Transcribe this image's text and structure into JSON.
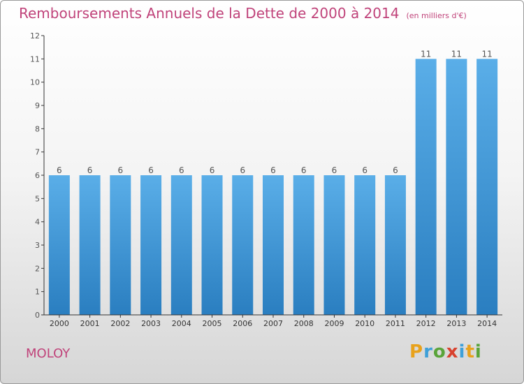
{
  "header": {
    "title": "Remboursements Annuels de la Dette de 2000 à 2014",
    "unit": "(en milliers d'€)"
  },
  "footer": {
    "commune": "MOLOY",
    "brand_letters": [
      "P",
      "r",
      "o",
      "x",
      "i",
      "t",
      "i"
    ]
  },
  "chart_data": {
    "type": "bar",
    "title": "Remboursements Annuels de la Dette de 2000 à 2014",
    "subtitle": "(en milliers d'€)",
    "categories": [
      "2000",
      "2001",
      "2002",
      "2003",
      "2004",
      "2005",
      "2006",
      "2007",
      "2008",
      "2009",
      "2010",
      "2011",
      "2012",
      "2013",
      "2014"
    ],
    "values": [
      6,
      6,
      6,
      6,
      6,
      6,
      6,
      6,
      6,
      6,
      6,
      6,
      11,
      11,
      11
    ],
    "data_labels": [
      "6",
      "6",
      "6",
      "6",
      "6",
      "6",
      "6",
      "6",
      "6",
      "6",
      "6",
      "6",
      "11",
      "11",
      "11"
    ],
    "ylim": [
      0,
      12
    ],
    "yticks": [
      0,
      1,
      2,
      3,
      4,
      5,
      6,
      7,
      8,
      9,
      10,
      11,
      12
    ],
    "grid": false,
    "colors": {
      "bar_top": "#5aaee8",
      "bar_bottom": "#2a7ec0",
      "axis": "#333333",
      "text": "#555555"
    }
  }
}
